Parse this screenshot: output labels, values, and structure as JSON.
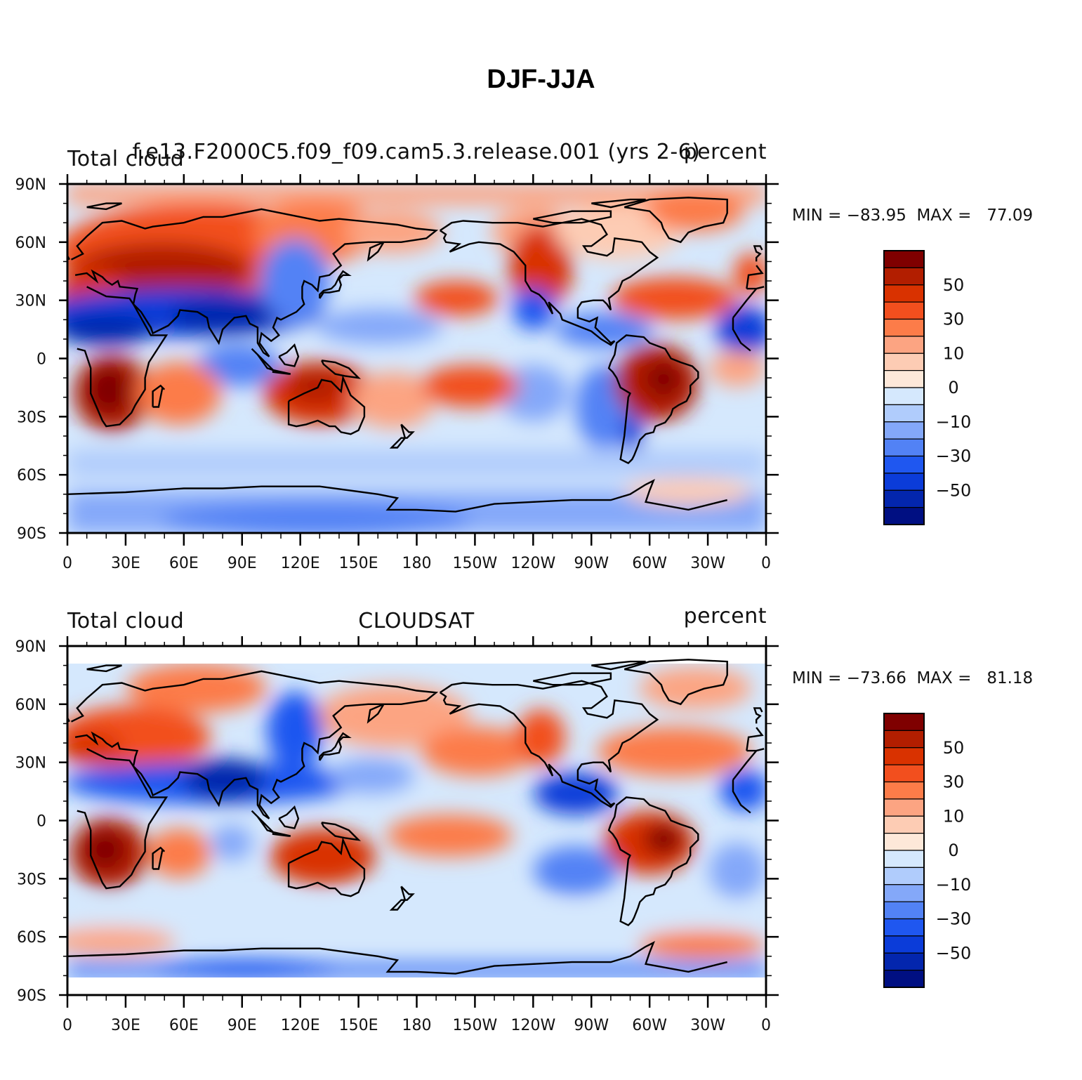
{
  "title": "DJF-JJA",
  "panels": [
    {
      "left_label": "Total cloud",
      "center_label": "f.e13.F2000C5.f09_f09.cam5.3.release.001 (yrs 2-6)",
      "right_label": "percent",
      "min_max": "MIN = −83.95  MAX =   77.09"
    },
    {
      "left_label": "Total cloud",
      "center_label": "CLOUDSAT",
      "right_label": "percent",
      "min_max": "MIN = −73.66  MAX =   81.18"
    }
  ],
  "axes": {
    "lat_ticks": [
      "90N",
      "60N",
      "30N",
      "0",
      "30S",
      "60S",
      "90S"
    ],
    "lon_ticks": [
      "0",
      "30E",
      "60E",
      "90E",
      "120E",
      "150E",
      "180",
      "150W",
      "120W",
      "90W",
      "60W",
      "30W",
      "0"
    ]
  },
  "colorbar": {
    "labels": [
      "50",
      "30",
      "10",
      "0",
      "−10",
      "−30",
      "−50"
    ],
    "colors": [
      "#7f0000",
      "#b21e00",
      "#d93200",
      "#f24f1e",
      "#fc7c49",
      "#fca482",
      "#fdccb4",
      "#fde8d9",
      "#d5e8fd",
      "#b0ccfc",
      "#84a8f9",
      "#5282f5",
      "#1f57f0",
      "#0b3cd9",
      "#0326ad",
      "#000f82"
    ]
  },
  "chart_data": {
    "type": "heatmap",
    "variable": "Total cloud",
    "units": "percent",
    "x_range": [
      0,
      360
    ],
    "y_range": [
      -90,
      90
    ],
    "contour_levels": [
      -70,
      -60,
      -50,
      -40,
      -30,
      -20,
      -10,
      0,
      10,
      20,
      30,
      40,
      50,
      60,
      70
    ],
    "fields": [
      {
        "source": "f.e13.F2000C5.f09_f09.cam5.3.release.001 (yrs 2-6)",
        "min": -83.95,
        "max": 77.09
      },
      {
        "source": "CLOUDSAT",
        "min": -73.66,
        "max": 81.18
      }
    ]
  }
}
